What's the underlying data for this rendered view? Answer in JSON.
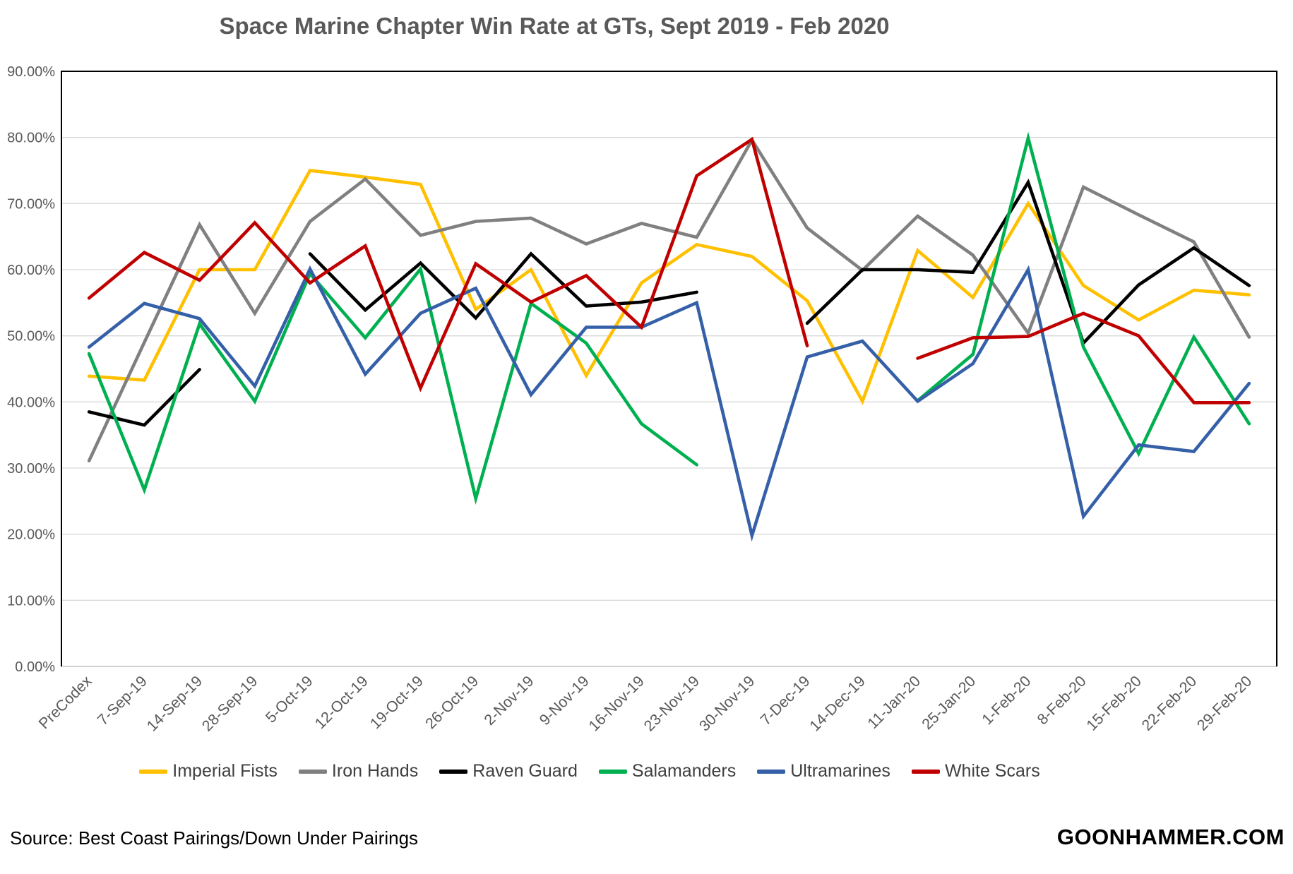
{
  "chart_data": {
    "type": "line",
    "title": "Space Marine Chapter Win Rate at GTs, Sept 2019 - Feb 2020",
    "xlabel": "",
    "ylabel": "",
    "ylim": [
      0,
      90
    ],
    "y_tick_step": 10,
    "y_ticks": [
      "0.00%",
      "10.00%",
      "20.00%",
      "30.00%",
      "40.00%",
      "50.00%",
      "60.00%",
      "70.00%",
      "80.00%",
      "90.00%"
    ],
    "grid": true,
    "legend_position": "bottom",
    "categories": [
      "PreCodex",
      "7-Sep-19",
      "14-Sep-19",
      "28-Sep-19",
      "5-Oct-19",
      "12-Oct-19",
      "19-Oct-19",
      "26-Oct-19",
      "2-Nov-19",
      "9-Nov-19",
      "16-Nov-19",
      "23-Nov-19",
      "30-Nov-19",
      "7-Dec-19",
      "14-Dec-19",
      "11-Jan-20",
      "25-Jan-20",
      "1-Feb-20",
      "8-Feb-20",
      "15-Feb-20",
      "22-Feb-20",
      "29-Feb-20"
    ],
    "series": [
      {
        "name": "Imperial Fists",
        "color": "#FFC000",
        "values": [
          43.9,
          43.3,
          60.0,
          60.0,
          75.0,
          74.0,
          72.9,
          54.0,
          60.0,
          44.0,
          58.0,
          63.8,
          62.0,
          55.3,
          40.1,
          62.9,
          55.8,
          70.0,
          57.6,
          52.4,
          56.9,
          56.2
        ]
      },
      {
        "name": "Iron Hands",
        "color": "#808080",
        "values": [
          31.1,
          49.0,
          66.8,
          53.4,
          67.3,
          73.7,
          65.2,
          67.3,
          67.8,
          63.9,
          67.0,
          64.9,
          79.6,
          66.3,
          59.9,
          68.1,
          62.2,
          50.4,
          72.5,
          68.3,
          64.2,
          49.8
        ]
      },
      {
        "name": "Raven Guard",
        "color": "#000000",
        "values": [
          38.5,
          36.5,
          44.9,
          null,
          62.4,
          53.9,
          61.0,
          52.7,
          62.4,
          54.5,
          55.1,
          56.6,
          null,
          51.9,
          60.0,
          60.0,
          59.6,
          73.2,
          48.9,
          57.7,
          63.3,
          57.6
        ]
      },
      {
        "name": "Salamanders",
        "color": "#00B050",
        "values": [
          47.3,
          26.7,
          51.8,
          40.1,
          59.4,
          49.7,
          60.1,
          25.4,
          54.9,
          48.9,
          36.7,
          30.5,
          null,
          null,
          null,
          40.2,
          47.2,
          79.9,
          48.3,
          32.2,
          49.8,
          36.7
        ]
      },
      {
        "name": "Ultramarines",
        "color": "#3560A8",
        "values": [
          48.3,
          54.9,
          52.6,
          42.4,
          60.1,
          44.2,
          53.4,
          57.2,
          41.1,
          51.3,
          51.3,
          55.0,
          19.8,
          46.8,
          49.2,
          40.1,
          45.8,
          60.0,
          22.7,
          33.5,
          32.5,
          42.8
        ]
      },
      {
        "name": "White Scars",
        "color": "#C00000",
        "values": [
          55.7,
          62.6,
          58.4,
          67.1,
          58.0,
          63.6,
          42.1,
          60.9,
          55.1,
          59.1,
          51.3,
          74.2,
          79.7,
          48.5,
          null,
          46.6,
          49.7,
          49.9,
          53.4,
          50.0,
          39.9,
          39.9
        ]
      }
    ],
    "axis_colors": {
      "gridline": "#D9D9D9",
      "baseline": "#BFBFBF",
      "border": "#000000",
      "tick_label": "#595959"
    }
  },
  "footer": {
    "source": "Source: Best Coast Pairings/Down Under Pairings",
    "watermark": "GOONHAMMER.COM"
  }
}
